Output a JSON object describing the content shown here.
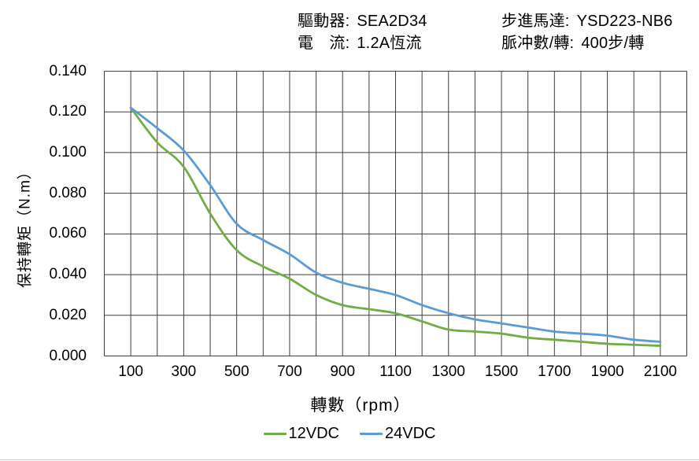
{
  "header": {
    "driver": {
      "label": "驅動器:",
      "value": "SEA2D34"
    },
    "current": {
      "label": "電　流:",
      "value": "1.2A恆流"
    },
    "motor": {
      "label": "步進馬達:",
      "value": "YSD223-NB6"
    },
    "pulses": {
      "label": "脈冲數/轉:",
      "value": "400步/轉"
    }
  },
  "chart_data": {
    "type": "line",
    "title": "",
    "xlabel": "轉數（rpm）",
    "ylabel": "保持轉矩（N.m）",
    "xlim": [
      0,
      2200
    ],
    "ylim": [
      0,
      0.14
    ],
    "grid": true,
    "x_grid_step": 100,
    "y_grid_step": 0.02,
    "x_tick_values": [
      100,
      300,
      500,
      700,
      900,
      1100,
      1300,
      1500,
      1700,
      1900,
      2100
    ],
    "y_tick_labels": [
      "0.000",
      "0.020",
      "0.040",
      "0.060",
      "0.080",
      "0.100",
      "0.120",
      "0.140"
    ],
    "legend_position": "bottom",
    "x": [
      100,
      200,
      300,
      400,
      500,
      600,
      700,
      800,
      900,
      1000,
      1100,
      1200,
      1300,
      1400,
      1500,
      1600,
      1700,
      1800,
      1900,
      2000,
      2100
    ],
    "series": [
      {
        "name": "12VDC",
        "color": "#70AD47",
        "values": [
          0.122,
          0.105,
          0.093,
          0.07,
          0.052,
          0.044,
          0.038,
          0.03,
          0.025,
          0.023,
          0.021,
          0.017,
          0.013,
          0.012,
          0.011,
          0.009,
          0.008,
          0.007,
          0.006,
          0.0055,
          0.005
        ]
      },
      {
        "name": "24VDC",
        "color": "#5B9BD5",
        "values": [
          0.122,
          0.112,
          0.101,
          0.084,
          0.065,
          0.057,
          0.05,
          0.041,
          0.036,
          0.033,
          0.03,
          0.025,
          0.021,
          0.018,
          0.016,
          0.014,
          0.012,
          0.011,
          0.01,
          0.008,
          0.007
        ]
      }
    ]
  },
  "style": {
    "grid_color": "#3d3d3d",
    "text_color": "#000000",
    "divider_color": "#c9c9c9",
    "background": "#ffffff"
  }
}
